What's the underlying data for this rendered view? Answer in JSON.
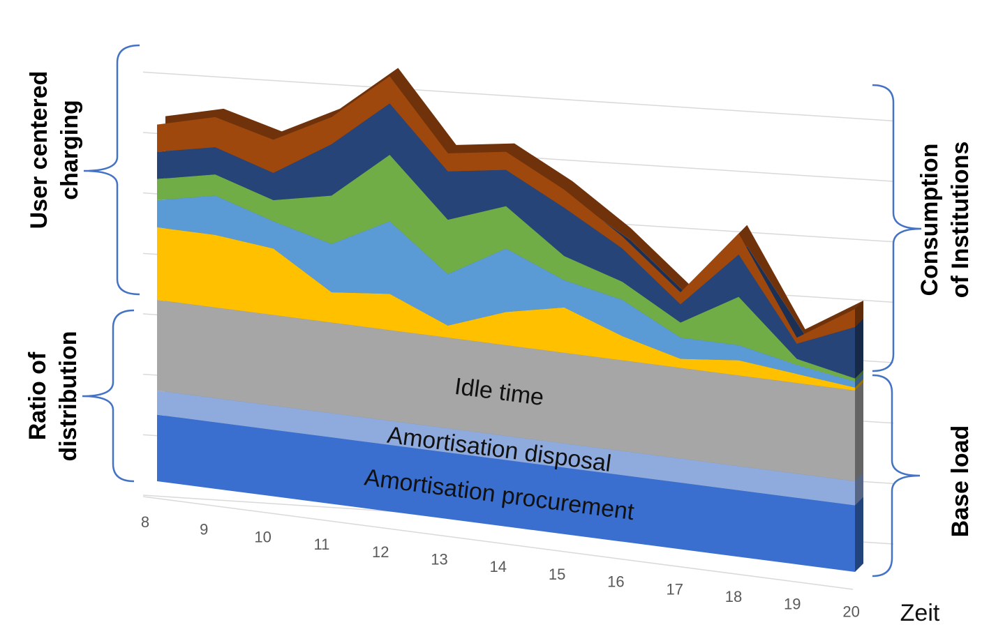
{
  "chart_data": {
    "type": "area3d",
    "categories": [
      "8",
      "9",
      "10",
      "11",
      "12",
      "13",
      "14",
      "15",
      "16",
      "17",
      "18",
      "19",
      "20"
    ],
    "x_label": "Zeit",
    "ylim": [
      0,
      75
    ],
    "yticks": [
      0,
      10,
      20,
      30,
      40,
      50,
      60,
      70
    ],
    "grid": true,
    "series": [
      {
        "name": "Amortisation procurement",
        "color": "#3a6fd0",
        "values": [
          11,
          11,
          11,
          11,
          11,
          11,
          11,
          11,
          11,
          11,
          11,
          11,
          11
        ]
      },
      {
        "name": "Amortisation disposal",
        "color": "#8faadc",
        "values": [
          4,
          4,
          4,
          4,
          4,
          4,
          4,
          4,
          4,
          4,
          4,
          4,
          4
        ]
      },
      {
        "name": "Idle time",
        "color": "#a6a6a6",
        "values": [
          15,
          15,
          15,
          15,
          15,
          15,
          15,
          15,
          15,
          15,
          15,
          15,
          15
        ]
      },
      {
        "color": "#ffc000",
        "values": [
          12,
          12,
          11,
          5,
          6,
          2,
          5.5,
          7.5,
          4,
          1.5,
          2.5,
          1.5,
          0.5
        ]
      },
      {
        "color": "#5b9bd5",
        "values": [
          4.5,
          6.5,
          4.5,
          8,
          12,
          8.5,
          10.5,
          4.5,
          6,
          3.5,
          2.5,
          1.5,
          1
        ]
      },
      {
        "color": "#70ad47",
        "values": [
          3.5,
          3.5,
          3.5,
          8,
          11,
          9,
          7,
          4,
          3,
          2.5,
          8,
          1,
          0.5
        ]
      },
      {
        "color": "#264478",
        "values": [
          4.5,
          4.5,
          4.5,
          8.5,
          8.5,
          8,
          6,
          8,
          5.5,
          3,
          7,
          2.5,
          8.5
        ]
      },
      {
        "color": "#9e480e",
        "values": [
          4.5,
          5,
          5.5,
          4.5,
          4.5,
          3,
          3,
          3,
          2,
          2,
          3.5,
          1,
          3
        ]
      }
    ],
    "annotations": [
      {
        "lines": [
          "User centered",
          "charging"
        ]
      },
      {
        "lines": [
          "Ratio of",
          "distribution"
        ]
      },
      {
        "lines": [
          "Consumption",
          "of Institutions"
        ]
      },
      {
        "lines": [
          "Base load"
        ]
      }
    ]
  }
}
